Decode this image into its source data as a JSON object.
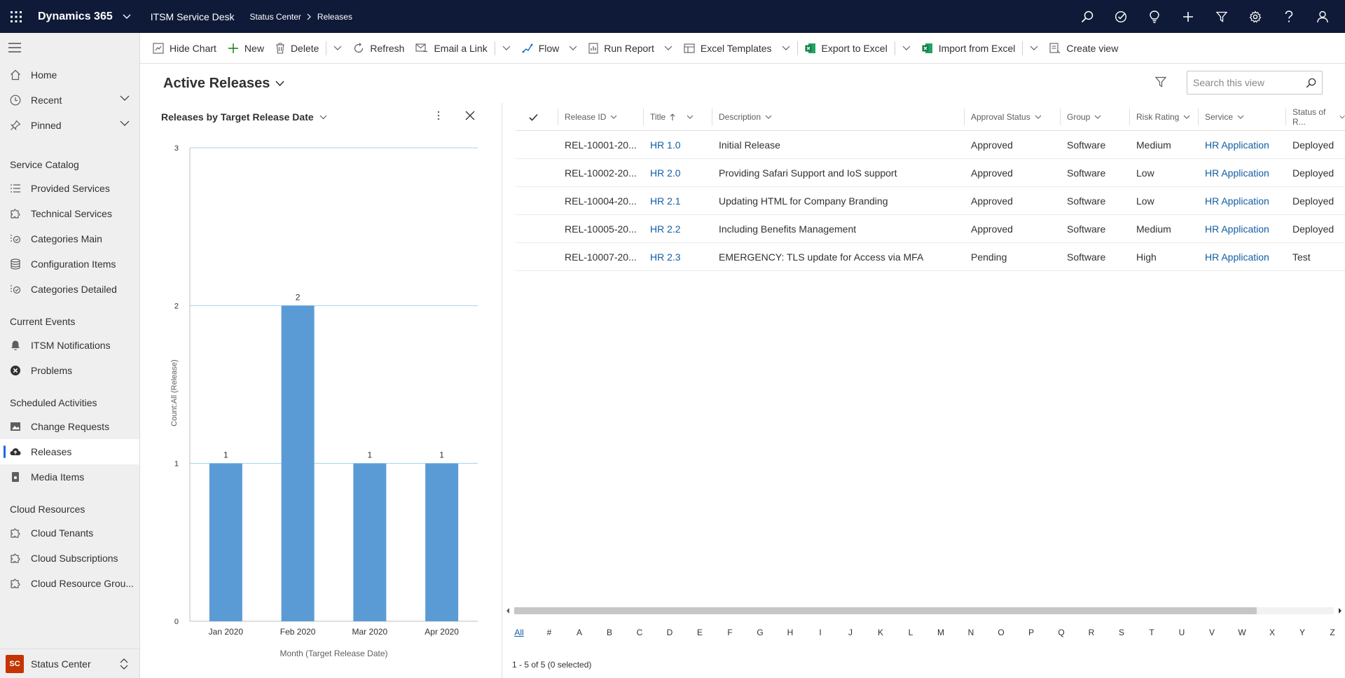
{
  "topbar": {
    "brand": "Dynamics 365",
    "app": "ITSM Service Desk",
    "crumb1": "Status Center",
    "crumb2": "Releases",
    "icons": [
      "search-icon",
      "task-icon",
      "lightbulb-icon",
      "plus-icon",
      "filter-icon",
      "gear-icon",
      "help-icon",
      "person-icon"
    ]
  },
  "sidebar": {
    "top_items": [
      {
        "label": "Home",
        "icon": "home-icon"
      },
      {
        "label": "Recent",
        "icon": "clock-icon"
      },
      {
        "label": "Pinned",
        "icon": "pin-icon"
      }
    ],
    "groups": [
      {
        "title": "Service Catalog",
        "items": [
          "Provided Services",
          "Technical Services",
          "Categories Main",
          "Configuration Items",
          "Categories Detailed"
        ]
      },
      {
        "title": "Current Events",
        "items": [
          "ITSM Notifications",
          "Problems"
        ]
      },
      {
        "title": "Scheduled Activities",
        "items": [
          "Change Requests",
          "Releases",
          "Media Items"
        ]
      },
      {
        "title": "Cloud Resources",
        "items": [
          "Cloud Tenants",
          "Cloud Subscriptions",
          "Cloud Resource Grou..."
        ]
      }
    ],
    "area_abbr": "SC",
    "area": "Status Center",
    "active": "Releases"
  },
  "commands": {
    "hide_chart": "Hide Chart",
    "new": "New",
    "delete": "Delete",
    "refresh": "Refresh",
    "email_link": "Email a Link",
    "flow": "Flow",
    "run_report": "Run Report",
    "excel_templates": "Excel Templates",
    "export_excel": "Export to Excel",
    "import_excel": "Import from Excel",
    "create_view": "Create view"
  },
  "view": {
    "title": "Active Releases",
    "search_placeholder": "Search this view"
  },
  "chart_pane": {
    "title": "Releases by Target Release Date"
  },
  "chart_data": {
    "type": "bar",
    "title": "Releases by Target Release Date",
    "categories": [
      "Jan 2020",
      "Feb 2020",
      "Mar 2020",
      "Apr 2020"
    ],
    "values": [
      1,
      2,
      1,
      1
    ],
    "xlabel": "Month (Target Release Date)",
    "ylabel": "Count:All (Release)",
    "ylim": [
      0,
      3
    ],
    "yticks": [
      0,
      1,
      2,
      3
    ],
    "bar_color": "#5b9bd5",
    "grid": true,
    "legend": "none"
  },
  "grid": {
    "columns": [
      "Release ID",
      "Title",
      "Description",
      "Approval Status",
      "Group",
      "Risk Rating",
      "Service",
      "Status of R..."
    ],
    "rows": [
      {
        "id": "REL-10001-20...",
        "title": "HR 1.0",
        "desc": "Initial Release",
        "approval": "Approved",
        "group": "Software",
        "risk": "Medium",
        "service": "HR Application",
        "status": "Deployed"
      },
      {
        "id": "REL-10002-20...",
        "title": "HR 2.0",
        "desc": "Providing Safari Support and IoS support",
        "approval": "Approved",
        "group": "Software",
        "risk": "Low",
        "service": "HR Application",
        "status": "Deployed"
      },
      {
        "id": "REL-10004-20...",
        "title": "HR 2.1",
        "desc": "Updating HTML for Company Branding",
        "approval": "Approved",
        "group": "Software",
        "risk": "Low",
        "service": "HR Application",
        "status": "Deployed"
      },
      {
        "id": "REL-10005-20...",
        "title": "HR 2.2",
        "desc": "Including Benefits Management",
        "approval": "Approved",
        "group": "Software",
        "risk": "Medium",
        "service": "HR Application",
        "status": "Deployed"
      },
      {
        "id": "REL-10007-20...",
        "title": "HR 2.3",
        "desc": "EMERGENCY: TLS update for Access via MFA",
        "approval": "Pending",
        "group": "Software",
        "risk": "High",
        "service": "HR Application",
        "status": "Test"
      }
    ],
    "alpha": [
      "All",
      "#",
      "A",
      "B",
      "C",
      "D",
      "E",
      "F",
      "G",
      "H",
      "I",
      "J",
      "K",
      "L",
      "M",
      "N",
      "O",
      "P",
      "Q",
      "R",
      "S",
      "T",
      "U",
      "V",
      "W",
      "X",
      "Y",
      "Z"
    ],
    "footer": "1 - 5 of 5 (0 selected)"
  },
  "colors": {
    "topbar": "#0f1a38",
    "link": "#115ea3",
    "accent": "#2266e3",
    "bar": "#5b9bd5"
  }
}
